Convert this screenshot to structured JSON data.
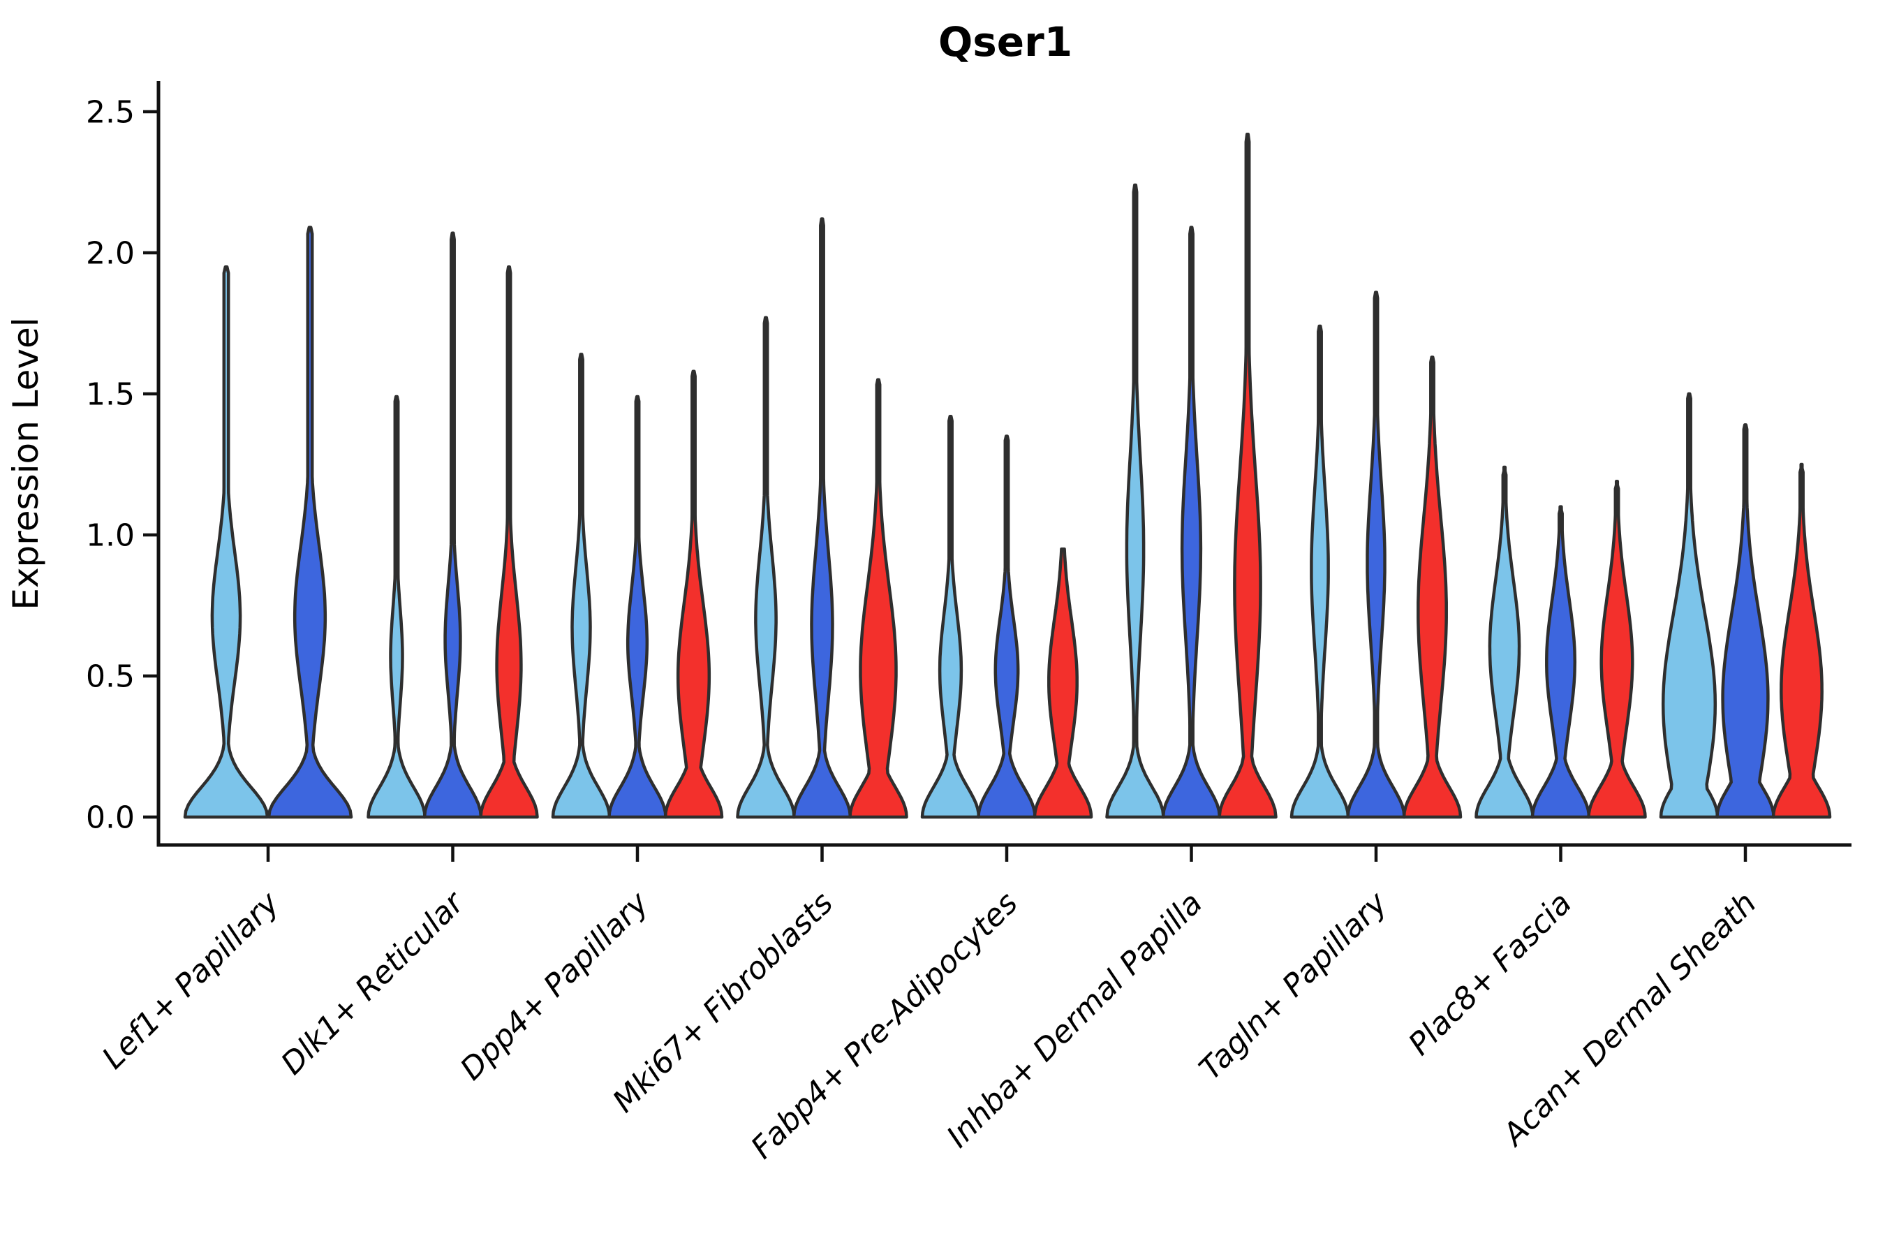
{
  "title": "Qser1",
  "axes": {
    "ylabel": "Expression Level",
    "ytick_labels": [
      "0.0",
      "0.5",
      "1.0",
      "1.5",
      "2.0",
      "2.5"
    ]
  },
  "colors": {
    "light_blue": "#7CC4EA",
    "dark_blue": "#3D66DE",
    "red": "#F3302C",
    "violin_outline": "#2E2E2E",
    "axis": "#111111",
    "text": "#000000",
    "background": "#FFFFFF"
  },
  "chart_data": {
    "type": "violin",
    "title": "Qser1",
    "xlabel": "",
    "ylabel": "Expression Level",
    "ylim": [
      0,
      2.5
    ],
    "yticks": [
      0,
      0.5,
      1.0,
      1.5,
      2.0,
      2.5
    ],
    "grid": false,
    "legend": "none",
    "categories": [
      "Lef1+ Papillary",
      "Dlk1+ Reticular",
      "Dpp4+ Papillary",
      "Mki67+ Fibroblasts",
      "Fabp4+ Pre-Adipocytes",
      "Inhba+ Dermal Papilla",
      "Tagln+ Papillary",
      "Plac8+ Fascia",
      "Acan+ Dermal Sheath"
    ],
    "series": [
      {
        "name": "light-blue",
        "color": "#7CC4EA",
        "violins": [
          {
            "max": 1.95,
            "mode": 0.71,
            "spread": 0.23,
            "width": 0.34
          },
          {
            "max": 1.49,
            "mode": 0.57,
            "spread": 0.17,
            "width": 0.21
          },
          {
            "max": 1.64,
            "mode": 0.67,
            "spread": 0.21,
            "width": 0.32
          },
          {
            "max": 1.77,
            "mode": 0.7,
            "spread": 0.23,
            "width": 0.36
          },
          {
            "max": 1.42,
            "mode": 0.52,
            "spread": 0.2,
            "width": 0.38
          },
          {
            "max": 2.24,
            "mode": 0.95,
            "spread": 0.32,
            "width": 0.3
          },
          {
            "max": 1.74,
            "mode": 0.88,
            "spread": 0.28,
            "width": 0.3
          },
          {
            "max": 1.24,
            "mode": 0.6,
            "spread": 0.24,
            "width": 0.52
          },
          {
            "max": 1.5,
            "mode": 0.4,
            "spread": 0.32,
            "width": 0.92
          }
        ]
      },
      {
        "name": "dark-blue",
        "color": "#3D66DE",
        "violins": [
          {
            "max": 2.09,
            "mode": 0.71,
            "spread": 0.25,
            "width": 0.37
          },
          {
            "max": 2.07,
            "mode": 0.63,
            "spread": 0.19,
            "width": 0.27
          },
          {
            "max": 1.49,
            "mode": 0.62,
            "spread": 0.19,
            "width": 0.34
          },
          {
            "max": 2.12,
            "mode": 0.68,
            "spread": 0.26,
            "width": 0.37
          },
          {
            "max": 1.35,
            "mode": 0.52,
            "spread": 0.18,
            "width": 0.4
          },
          {
            "max": 2.09,
            "mode": 0.95,
            "spread": 0.32,
            "width": 0.33
          },
          {
            "max": 1.86,
            "mode": 0.9,
            "spread": 0.28,
            "width": 0.31
          },
          {
            "max": 1.1,
            "mode": 0.55,
            "spread": 0.22,
            "width": 0.5
          },
          {
            "max": 1.39,
            "mode": 0.42,
            "spread": 0.3,
            "width": 0.8
          }
        ]
      },
      {
        "name": "red",
        "color": "#F3302C",
        "violins": [
          null,
          {
            "max": 1.95,
            "mode": 0.54,
            "spread": 0.25,
            "width": 0.43
          },
          {
            "max": 1.58,
            "mode": 0.5,
            "spread": 0.26,
            "width": 0.55
          },
          {
            "max": 1.55,
            "mode": 0.52,
            "spread": 0.3,
            "width": 0.63
          },
          {
            "max": 0.95,
            "mode": 0.48,
            "spread": 0.22,
            "width": 0.5
          },
          {
            "max": 2.42,
            "mode": 0.82,
            "spread": 0.4,
            "width": 0.46
          },
          {
            "max": 1.63,
            "mode": 0.73,
            "spread": 0.33,
            "width": 0.5
          },
          {
            "max": 1.19,
            "mode": 0.55,
            "spread": 0.24,
            "width": 0.55
          },
          {
            "max": 1.25,
            "mode": 0.45,
            "spread": 0.28,
            "width": 0.72
          }
        ]
      }
    ]
  }
}
